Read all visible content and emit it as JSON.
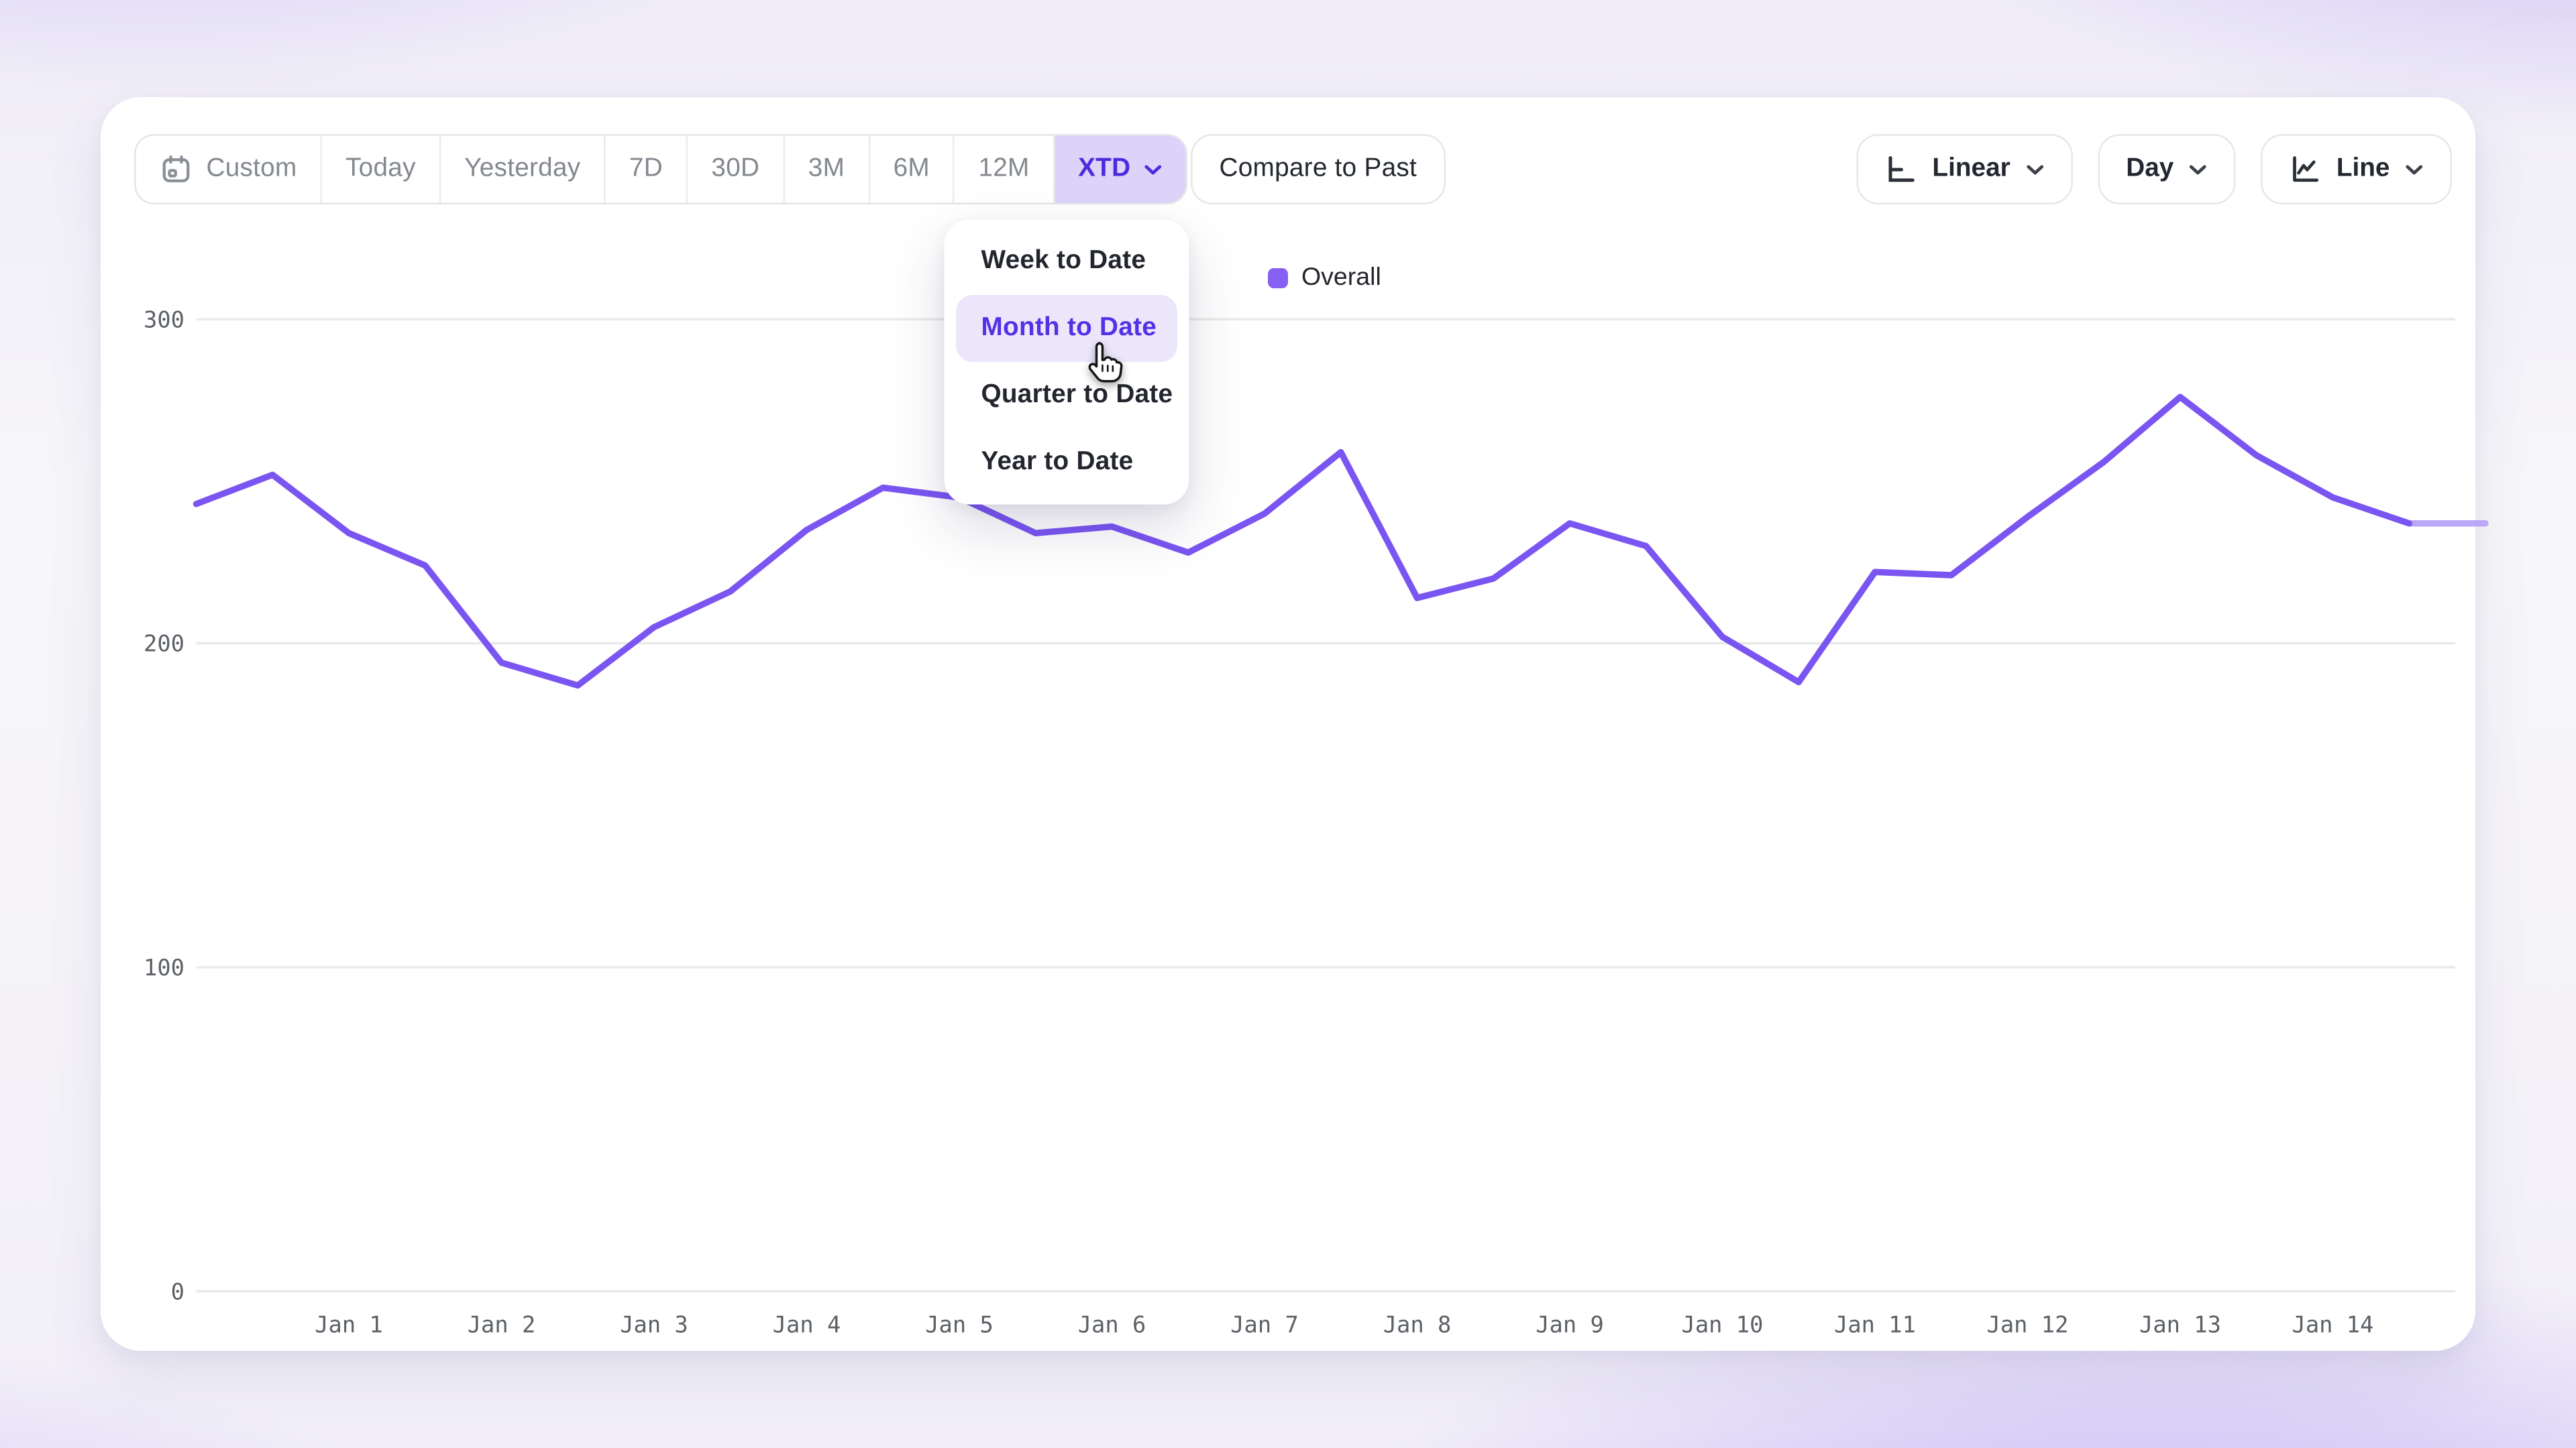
{
  "toolbar": {
    "ranges": [
      {
        "label": "Custom",
        "icon": "calendar",
        "selected": false
      },
      {
        "label": "Today",
        "selected": false
      },
      {
        "label": "Yesterday",
        "selected": false
      },
      {
        "label": "7D",
        "selected": false
      },
      {
        "label": "30D",
        "selected": false
      },
      {
        "label": "3M",
        "selected": false
      },
      {
        "label": "6M",
        "selected": false
      },
      {
        "label": "12M",
        "selected": false
      },
      {
        "label": "XTD",
        "selected": true,
        "chevron": true
      }
    ],
    "compare_label": "Compare to Past",
    "controls": [
      {
        "label": "Linear",
        "icon": "axis-scale",
        "chevron": true
      },
      {
        "label": "Day",
        "icon": null,
        "chevron": true
      },
      {
        "label": "Line",
        "icon": "line-chart",
        "chevron": true
      }
    ]
  },
  "dropdown": {
    "items": [
      {
        "label": "Week to Date",
        "highlighted": false
      },
      {
        "label": "Month to Date",
        "highlighted": true
      },
      {
        "label": "Quarter to Date",
        "highlighted": false
      },
      {
        "label": "Year to Date",
        "highlighted": false
      }
    ]
  },
  "legend": {
    "label": "Overall",
    "swatch_color": "#8660f2"
  },
  "chart_data": {
    "type": "line",
    "title": "",
    "series": [
      {
        "name": "Overall",
        "color": "#7a55f2",
        "faded_tail_color": "#bba7f8",
        "values": [
          243,
          252,
          234,
          224,
          194,
          187,
          205,
          216,
          235,
          248,
          245,
          234,
          236,
          228,
          240,
          259,
          214,
          220,
          237,
          230,
          202,
          188,
          222,
          221,
          239,
          256,
          276,
          258,
          245,
          237,
          237
        ]
      }
    ],
    "x_step_days": 0.5,
    "x_tick_labels": [
      "Jan 1",
      "Jan 2",
      "Jan 3",
      "Jan 4",
      "Jan 5",
      "Jan 6",
      "Jan 7",
      "Jan 8",
      "Jan 9",
      "Jan 10",
      "Jan 11",
      "Jan 12",
      "Jan 13",
      "Jan 14"
    ],
    "x_tick_point_indices": [
      2,
      4,
      6,
      8,
      10,
      12,
      14,
      16,
      18,
      20,
      22,
      24,
      26,
      28
    ],
    "y_tick_labels": [
      "0",
      "100",
      "200",
      "300"
    ],
    "yticks": [
      0,
      100,
      200,
      300
    ],
    "ylim": [
      0,
      300
    ],
    "grid": "horizontal",
    "legend_position": "top-center",
    "faded_from_index": 29
  },
  "colors": {
    "accent_line": "#7a55f2",
    "accent_text": "#4b2be0",
    "selected_bg": "#ddd3f8",
    "menu_highlight_bg": "#ece6fb",
    "menu_highlight_text": "#5431e6",
    "gridline": "#e9e9e9",
    "axis_label": "#5b6066",
    "toolbar_label": "#84888f",
    "dark_text": "#23272f"
  }
}
